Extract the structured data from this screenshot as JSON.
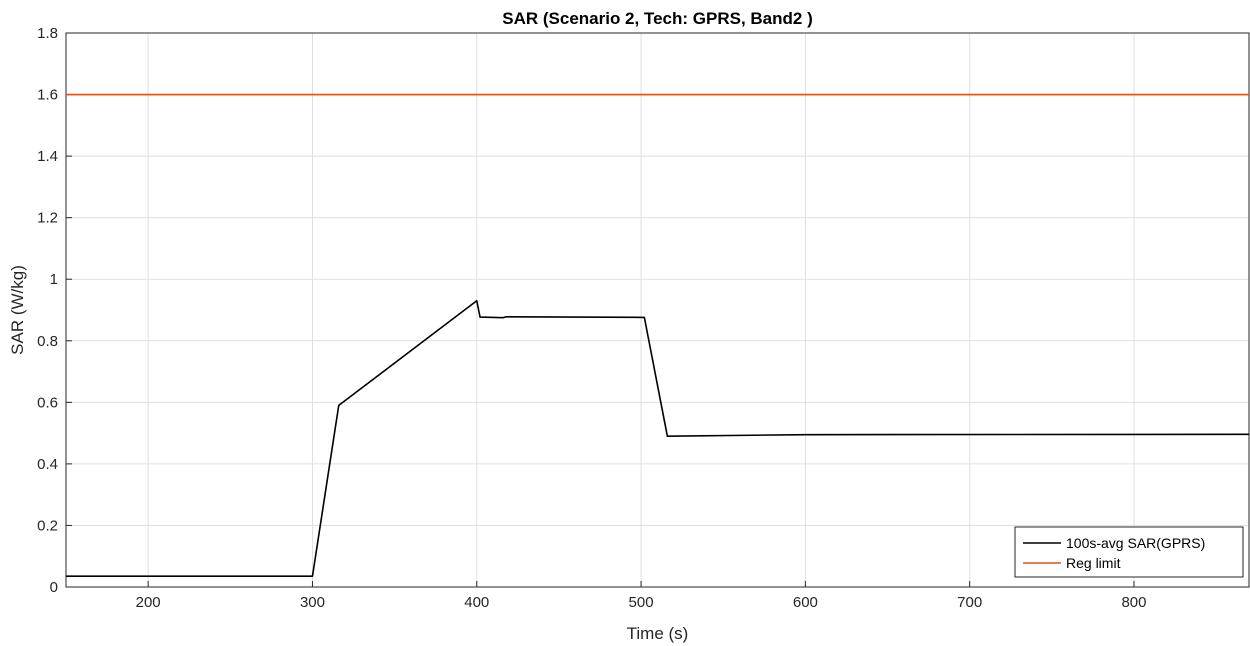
{
  "chart_data": {
    "type": "line",
    "title": "SAR (Scenario 2, Tech: GPRS, Band2 )",
    "xlabel": "Time (s)",
    "ylabel": "SAR (W/kg)",
    "xlim": [
      150,
      870
    ],
    "ylim": [
      0,
      1.8
    ],
    "xticks": [
      200,
      300,
      400,
      500,
      600,
      700,
      800
    ],
    "yticks": [
      0,
      0.2,
      0.4,
      0.6,
      0.8,
      1,
      1.2,
      1.4,
      1.6,
      1.8
    ],
    "xtick_labels": [
      "200",
      "300",
      "400",
      "500",
      "600",
      "700",
      "800"
    ],
    "ytick_labels": [
      "0",
      "0.2",
      "0.4",
      "0.6",
      "0.8",
      "1",
      "1.2",
      "1.4",
      "1.6",
      "1.8"
    ],
    "grid": true,
    "legend_position": "bottom-right",
    "series": [
      {
        "name": "100s-avg SAR(GPRS)",
        "color": "#000000",
        "x": [
          150,
          300,
          316,
          400,
          402,
          416,
          418,
          502,
          516,
          600,
          870
        ],
        "y": [
          0.035,
          0.035,
          0.59,
          0.93,
          0.877,
          0.875,
          0.878,
          0.876,
          0.49,
          0.495,
          0.496
        ]
      },
      {
        "name": "Reg limit",
        "color": "#d95319",
        "x": [
          150,
          870
        ],
        "y": [
          1.6,
          1.6
        ]
      }
    ]
  }
}
